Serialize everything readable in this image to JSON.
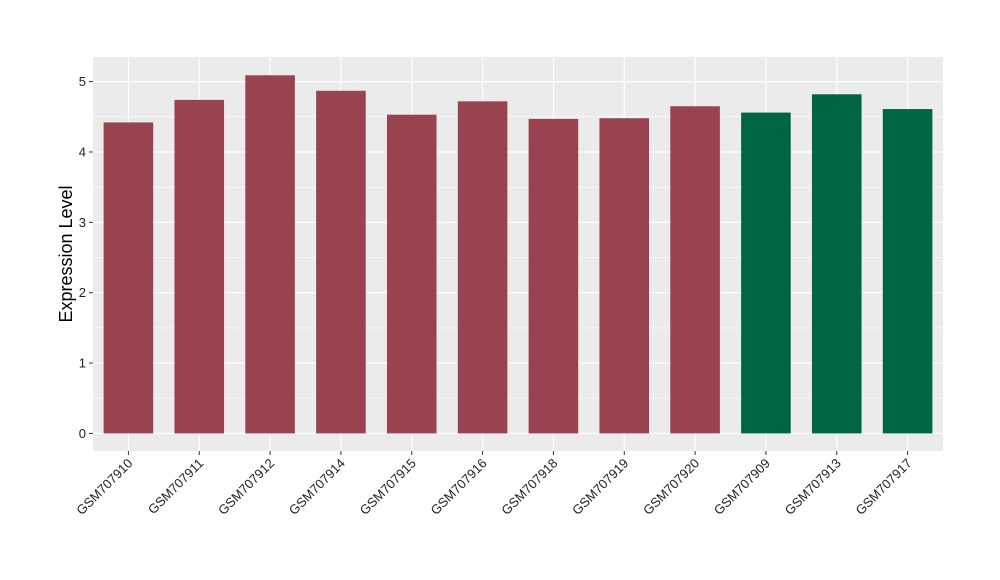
{
  "chart_data": {
    "type": "bar",
    "ylabel": "Expression Level",
    "xlabel": "",
    "title": "",
    "categories": [
      "GSM707910",
      "GSM707911",
      "GSM707912",
      "GSM707914",
      "GSM707915",
      "GSM707916",
      "GSM707918",
      "GSM707919",
      "GSM707920",
      "GSM707909",
      "GSM707913",
      "GSM707917"
    ],
    "values": [
      4.42,
      4.74,
      5.09,
      4.87,
      4.53,
      4.72,
      4.47,
      4.48,
      4.65,
      4.56,
      4.82,
      4.61
    ],
    "groups": [
      "a",
      "a",
      "a",
      "a",
      "a",
      "a",
      "a",
      "a",
      "a",
      "b",
      "b",
      "b"
    ],
    "group_colors": {
      "a": "#994250",
      "b": "#006544"
    },
    "ylim": [
      -0.25,
      5.35
    ],
    "yticks": [
      0,
      1,
      2,
      3,
      4,
      5
    ],
    "grid": true,
    "panel_background": "#ebebeb",
    "grid_color": "#ffffff",
    "legend": "none"
  }
}
